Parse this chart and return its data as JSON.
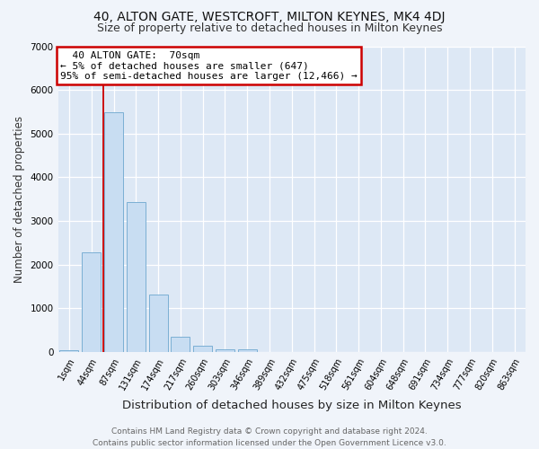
{
  "title": "40, ALTON GATE, WESTCROFT, MILTON KEYNES, MK4 4DJ",
  "subtitle": "Size of property relative to detached houses in Milton Keynes",
  "xlabel": "Distribution of detached houses by size in Milton Keynes",
  "ylabel": "Number of detached properties",
  "categories": [
    "1sqm",
    "44sqm",
    "87sqm",
    "131sqm",
    "174sqm",
    "217sqm",
    "260sqm",
    "303sqm",
    "346sqm",
    "389sqm",
    "432sqm",
    "475sqm",
    "518sqm",
    "561sqm",
    "604sqm",
    "648sqm",
    "691sqm",
    "734sqm",
    "777sqm",
    "820sqm",
    "863sqm"
  ],
  "values": [
    50,
    2280,
    5480,
    3430,
    1310,
    360,
    155,
    70,
    55,
    0,
    0,
    0,
    0,
    0,
    0,
    0,
    0,
    0,
    0,
    0,
    0
  ],
  "bar_color": "#c8ddf2",
  "bar_edge_color": "#7bafd4",
  "ylim": [
    0,
    7000
  ],
  "yticks": [
    0,
    1000,
    2000,
    3000,
    4000,
    5000,
    6000,
    7000
  ],
  "red_line_x": 1.55,
  "annotation_text": "  40 ALTON GATE:  70sqm  \n← 5% of detached houses are smaller (647)\n95% of semi-detached houses are larger (12,466) →",
  "annotation_border_color": "#cc0000",
  "footer": "Contains HM Land Registry data © Crown copyright and database right 2024.\nContains public sector information licensed under the Open Government Licence v3.0.",
  "fig_bg_color": "#f0f4fa",
  "plot_bg_color": "#dde8f5",
  "grid_color": "#ffffff",
  "title_fontsize": 10,
  "subtitle_fontsize": 9,
  "xlabel_fontsize": 9.5,
  "ylabel_fontsize": 8.5,
  "tick_fontsize": 7,
  "footer_fontsize": 6.5,
  "annotation_fontsize": 8
}
